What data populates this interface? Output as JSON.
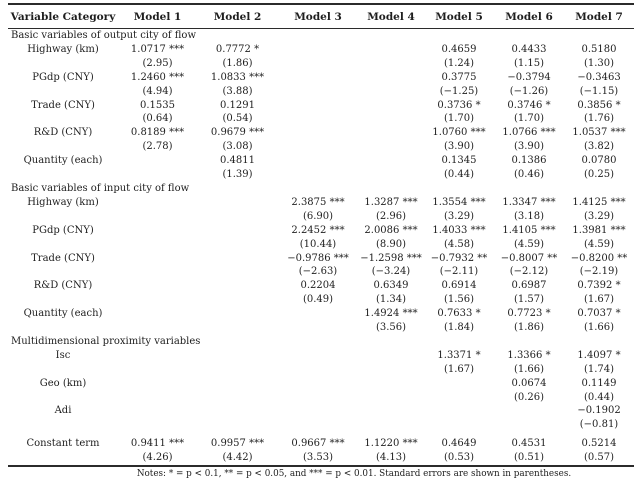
{
  "table": {
    "headers": [
      "Variable Category",
      "Model 1",
      "Model 2",
      "Model 3",
      "Model 4",
      "Model 5",
      "Model 6",
      "Model 7"
    ],
    "rows": [
      {
        "type": "section",
        "label": "Basic variables of output city of flow"
      },
      {
        "type": "var",
        "label": "Highway (km)",
        "coefs": [
          "1.0717 ***",
          "0.7772 *",
          "",
          "",
          "0.4659",
          "0.4433",
          "0.5180"
        ],
        "tstats": [
          "(2.95)",
          "(1.86)",
          "",
          "",
          "(1.24)",
          "(1.15)",
          "(1.30)"
        ]
      },
      {
        "type": "var",
        "label": "PGdp (CNY)",
        "coefs": [
          "1.2460 ***",
          "1.0833 ***",
          "",
          "",
          "0.3775",
          "−0.3794",
          "−0.3463"
        ],
        "tstats": [
          "(4.94)",
          "(3.88)",
          "",
          "",
          "(−1.25)",
          "(−1.26)",
          "(−1.15)"
        ]
      },
      {
        "type": "var",
        "label": "Trade (CNY)",
        "coefs": [
          "0.1535",
          "0.1291",
          "",
          "",
          "0.3736 *",
          "0.3746 *",
          "0.3856 *"
        ],
        "tstats": [
          "(0.64)",
          "(0.54)",
          "",
          "",
          "(1.70)",
          "(1.70)",
          "(1.76)"
        ]
      },
      {
        "type": "var",
        "label": "R&D (CNY)",
        "coefs": [
          "0.8189 ***",
          "0.9679 ***",
          "",
          "",
          "1.0760 ***",
          "1.0766 ***",
          "1.0537 ***"
        ],
        "tstats": [
          "(2.78)",
          "(3.08)",
          "",
          "",
          "(3.90)",
          "(3.90)",
          "(3.82)"
        ]
      },
      {
        "type": "var",
        "label": "Quantity (each)",
        "coefs": [
          "",
          "0.4811",
          "",
          "",
          "0.1345",
          "0.1386",
          "0.0780"
        ],
        "tstats": [
          "",
          "(1.39)",
          "",
          "",
          "(0.44)",
          "(0.46)",
          "(0.25)"
        ]
      },
      {
        "type": "section",
        "label": "Basic variables of input city of flow"
      },
      {
        "type": "var",
        "label": "Highway (km)",
        "coefs": [
          "",
          "",
          "2.3875 ***",
          "1.3287 ***",
          "1.3554 ***",
          "1.3347 ***",
          "1.4125 ***"
        ],
        "tstats": [
          "",
          "",
          "(6.90)",
          "(2.96)",
          "(3.29)",
          "(3.18)",
          "(3.29)"
        ]
      },
      {
        "type": "var",
        "label": "PGdp (CNY)",
        "coefs": [
          "",
          "",
          "2.2452 ***",
          "2.0086 ***",
          "1.4033 ***",
          "1.4105 ***",
          "1.3981 ***"
        ],
        "tstats": [
          "",
          "",
          "(10.44)",
          "(8.90)",
          "(4.58)",
          "(4.59)",
          "(4.59)"
        ]
      },
      {
        "type": "var",
        "label": "Trade (CNY)",
        "coefs": [
          "",
          "",
          "−0.9786 ***",
          "−1.2598 ***",
          "−0.7932 **",
          "−0.8007 **",
          "−0.8200 **"
        ],
        "tstats": [
          "",
          "",
          "(−2.63)",
          "(−3.24)",
          "(−2.11)",
          "(−2.12)",
          "(−2.19)"
        ]
      },
      {
        "type": "var",
        "label": "R&D (CNY)",
        "coefs": [
          "",
          "",
          "0.2204",
          "0.6349",
          "0.6914",
          "0.6987",
          "0.7392 *"
        ],
        "tstats": [
          "",
          "",
          "(0.49)",
          "(1.34)",
          "(1.56)",
          "(1.57)",
          "(1.67)"
        ]
      },
      {
        "type": "var",
        "label": "Quantity (each)",
        "coefs": [
          "",
          "",
          "",
          "1.4924 ***",
          "0.7633 *",
          "0.7723 *",
          "0.7037 *"
        ],
        "tstats": [
          "",
          "",
          "",
          "(3.56)",
          "(1.84)",
          "(1.86)",
          "(1.66)"
        ]
      },
      {
        "type": "section",
        "label": "Multidimensional proximity variables"
      },
      {
        "type": "var",
        "label": "Isc",
        "coefs": [
          "",
          "",
          "",
          "",
          "1.3371 *",
          "1.3366 *",
          "1.4097 *"
        ],
        "tstats": [
          "",
          "",
          "",
          "",
          "(1.67)",
          "(1.66)",
          "(1.74)"
        ]
      },
      {
        "type": "var",
        "label": "Geo (km)",
        "coefs": [
          "",
          "",
          "",
          "",
          "",
          "0.0674",
          "0.1149"
        ],
        "tstats": [
          "",
          "",
          "",
          "",
          "",
          "(0.26)",
          "(0.44)"
        ]
      },
      {
        "type": "var",
        "label": "Adi",
        "coefs": [
          "",
          "",
          "",
          "",
          "",
          "",
          "−0.1902"
        ],
        "tstats": [
          "",
          "",
          "",
          "",
          "",
          "",
          "(−0.81)"
        ]
      },
      {
        "type": "var",
        "spacer": true,
        "label": "Constant term",
        "coefs": [
          "0.9411 ***",
          "0.9957 ***",
          "0.9667 ***",
          "1.1220 ***",
          "0.4649",
          "0.4531",
          "0.5214"
        ],
        "tstats": [
          "(4.26)",
          "(4.42)",
          "(3.53)",
          "(4.13)",
          "(0.53)",
          "(0.51)",
          "(0.57)"
        ]
      }
    ]
  },
  "notes": "Notes: * = p < 0.1, ** = p < 0.05, and *** = p < 0.01. Standard errors are shown in parentheses."
}
